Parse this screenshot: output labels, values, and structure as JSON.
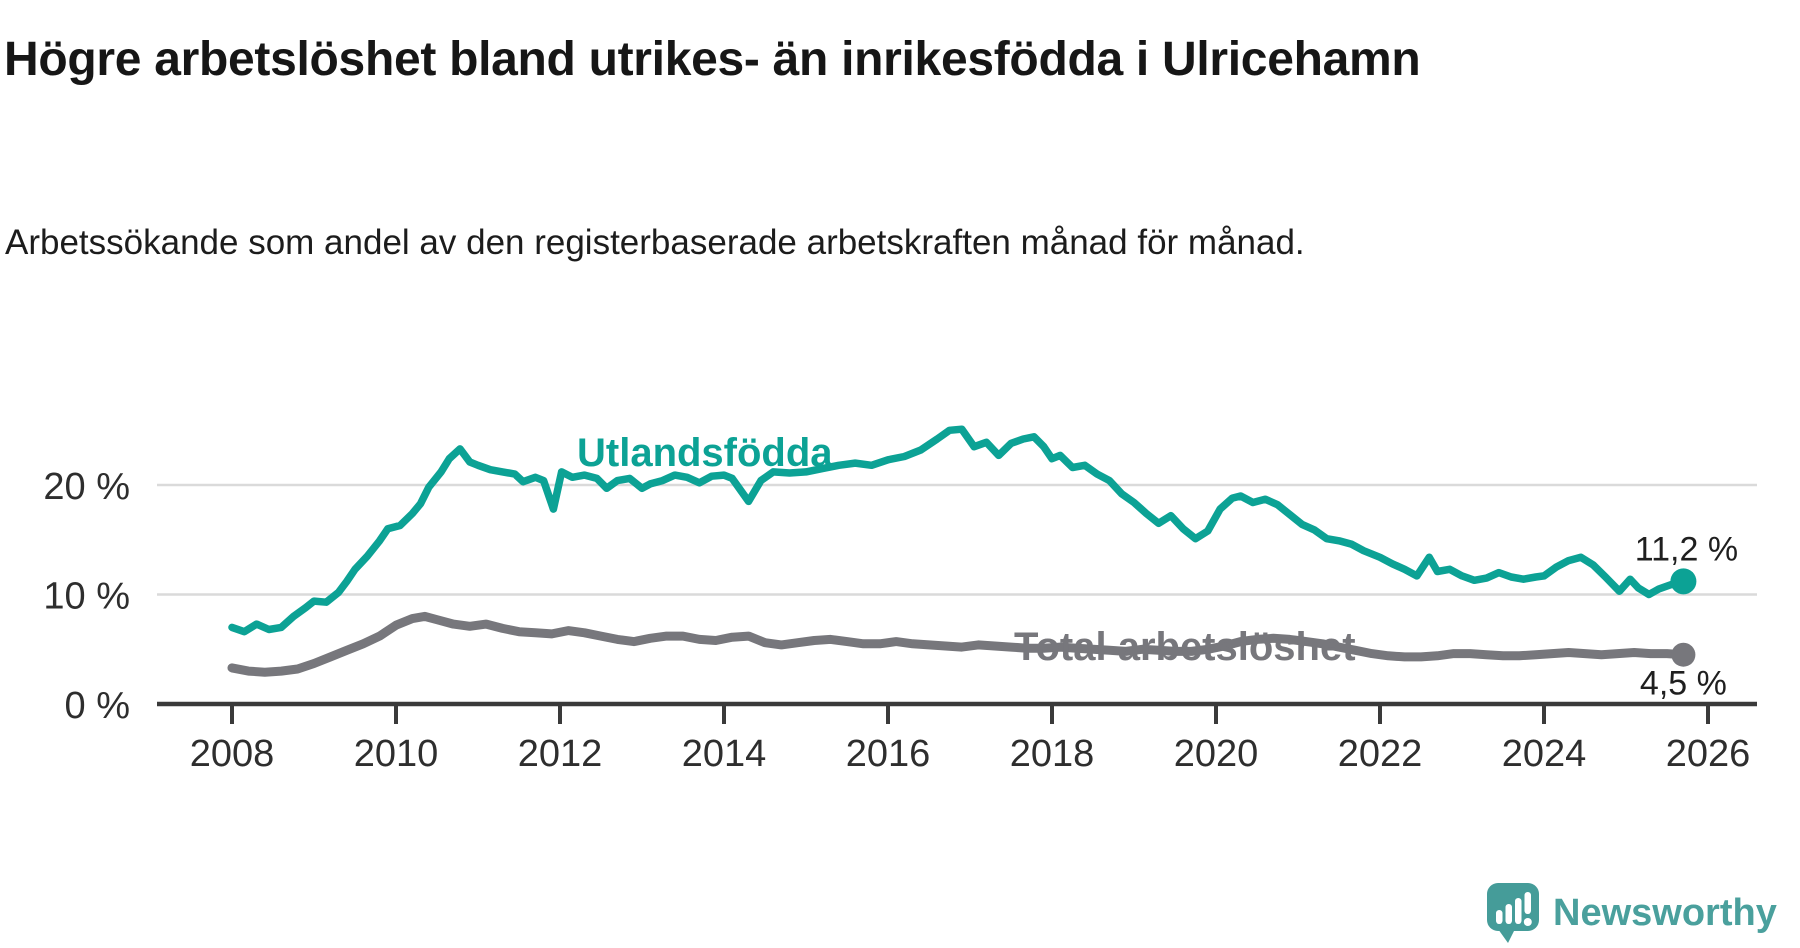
{
  "page": {
    "title": "Högre arbetslöshet bland utrikes- än inrikesfödda i Ulricehamn",
    "subtitle": "Arbetssökande som andel av den registerbaserade arbetskraften månad för månad."
  },
  "branding": {
    "logo_text": "Newsworthy",
    "logo_icon": "bar-chart-speech-bubble-icon",
    "logo_teal": "#4AA09D",
    "logo_icon_bg": "#459C99"
  },
  "chart_data": {
    "type": "line",
    "title": "Högre arbetslöshet bland utrikes- än inrikesfödda i Ulricehamn",
    "subtitle": "Arbetssökande som andel av den registerbaserade arbetskraften månad för månad.",
    "grid": "horizontal",
    "legend": "inline-labels",
    "x_axis": {
      "range": [
        2007.8,
        2026.4
      ],
      "ticks": [
        2008,
        2010,
        2012,
        2014,
        2016,
        2018,
        2020,
        2022,
        2024,
        2026
      ]
    },
    "y_axis": {
      "unit": "%",
      "range": [
        0,
        31
      ],
      "tick_values": [
        0,
        10,
        20
      ],
      "tick_labels": [
        "0 %",
        "10 %",
        "20 %"
      ]
    },
    "series": [
      {
        "name": "Utlandsfödda",
        "color": "#0CA295",
        "end_label": "11,2 %",
        "end_value": 11.2,
        "points": [
          [
            2008.0,
            7.0
          ],
          [
            2008.15,
            6.6
          ],
          [
            2008.3,
            7.3
          ],
          [
            2008.45,
            6.8
          ],
          [
            2008.6,
            7.0
          ],
          [
            2008.75,
            8.0
          ],
          [
            2008.9,
            8.8
          ],
          [
            2009.0,
            9.4
          ],
          [
            2009.15,
            9.3
          ],
          [
            2009.3,
            10.2
          ],
          [
            2009.4,
            11.2
          ],
          [
            2009.5,
            12.3
          ],
          [
            2009.65,
            13.5
          ],
          [
            2009.8,
            14.9
          ],
          [
            2009.9,
            16.0
          ],
          [
            2010.05,
            16.3
          ],
          [
            2010.2,
            17.4
          ],
          [
            2010.3,
            18.3
          ],
          [
            2010.4,
            19.8
          ],
          [
            2010.55,
            21.2
          ],
          [
            2010.65,
            22.4
          ],
          [
            2010.78,
            23.3
          ],
          [
            2010.9,
            22.1
          ],
          [
            2011.0,
            21.8
          ],
          [
            2011.15,
            21.4
          ],
          [
            2011.3,
            21.2
          ],
          [
            2011.45,
            21.0
          ],
          [
            2011.55,
            20.3
          ],
          [
            2011.7,
            20.7
          ],
          [
            2011.8,
            20.4
          ],
          [
            2011.92,
            17.8
          ],
          [
            2012.02,
            21.2
          ],
          [
            2012.15,
            20.7
          ],
          [
            2012.3,
            20.9
          ],
          [
            2012.45,
            20.6
          ],
          [
            2012.57,
            19.7
          ],
          [
            2012.7,
            20.4
          ],
          [
            2012.85,
            20.6
          ],
          [
            2013.0,
            19.7
          ],
          [
            2013.1,
            20.1
          ],
          [
            2013.25,
            20.4
          ],
          [
            2013.4,
            20.9
          ],
          [
            2013.55,
            20.7
          ],
          [
            2013.7,
            20.2
          ],
          [
            2013.85,
            20.8
          ],
          [
            2014.0,
            20.9
          ],
          [
            2014.1,
            20.6
          ],
          [
            2014.3,
            18.5
          ],
          [
            2014.45,
            20.4
          ],
          [
            2014.6,
            21.2
          ],
          [
            2014.8,
            21.1
          ],
          [
            2015.0,
            21.2
          ],
          [
            2015.2,
            21.5
          ],
          [
            2015.4,
            21.8
          ],
          [
            2015.6,
            22.0
          ],
          [
            2015.8,
            21.8
          ],
          [
            2016.0,
            22.3
          ],
          [
            2016.2,
            22.6
          ],
          [
            2016.4,
            23.2
          ],
          [
            2016.6,
            24.2
          ],
          [
            2016.75,
            25.0
          ],
          [
            2016.9,
            25.1
          ],
          [
            2017.05,
            23.5
          ],
          [
            2017.2,
            23.9
          ],
          [
            2017.35,
            22.7
          ],
          [
            2017.5,
            23.8
          ],
          [
            2017.65,
            24.2
          ],
          [
            2017.78,
            24.4
          ],
          [
            2017.9,
            23.5
          ],
          [
            2018.0,
            22.4
          ],
          [
            2018.1,
            22.7
          ],
          [
            2018.25,
            21.6
          ],
          [
            2018.4,
            21.8
          ],
          [
            2018.55,
            21.0
          ],
          [
            2018.7,
            20.4
          ],
          [
            2018.85,
            19.2
          ],
          [
            2019.0,
            18.4
          ],
          [
            2019.15,
            17.4
          ],
          [
            2019.3,
            16.5
          ],
          [
            2019.45,
            17.2
          ],
          [
            2019.6,
            16.0
          ],
          [
            2019.75,
            15.1
          ],
          [
            2019.9,
            15.8
          ],
          [
            2020.05,
            17.8
          ],
          [
            2020.2,
            18.8
          ],
          [
            2020.3,
            19.0
          ],
          [
            2020.45,
            18.4
          ],
          [
            2020.6,
            18.7
          ],
          [
            2020.75,
            18.2
          ],
          [
            2020.9,
            17.3
          ],
          [
            2021.05,
            16.4
          ],
          [
            2021.2,
            15.9
          ],
          [
            2021.35,
            15.1
          ],
          [
            2021.5,
            14.9
          ],
          [
            2021.65,
            14.6
          ],
          [
            2021.8,
            14.0
          ],
          [
            2022.0,
            13.4
          ],
          [
            2022.15,
            12.8
          ],
          [
            2022.3,
            12.3
          ],
          [
            2022.45,
            11.7
          ],
          [
            2022.6,
            13.4
          ],
          [
            2022.7,
            12.1
          ],
          [
            2022.85,
            12.3
          ],
          [
            2023.0,
            11.7
          ],
          [
            2023.15,
            11.3
          ],
          [
            2023.3,
            11.5
          ],
          [
            2023.45,
            12.0
          ],
          [
            2023.6,
            11.6
          ],
          [
            2023.75,
            11.4
          ],
          [
            2023.9,
            11.6
          ],
          [
            2024.0,
            11.7
          ],
          [
            2024.15,
            12.5
          ],
          [
            2024.3,
            13.1
          ],
          [
            2024.45,
            13.4
          ],
          [
            2024.6,
            12.7
          ],
          [
            2024.75,
            11.6
          ],
          [
            2024.92,
            10.3
          ],
          [
            2025.05,
            11.4
          ],
          [
            2025.15,
            10.6
          ],
          [
            2025.28,
            10.0
          ],
          [
            2025.4,
            10.5
          ],
          [
            2025.55,
            10.9
          ],
          [
            2025.7,
            11.2
          ]
        ]
      },
      {
        "name": "Total arbetslöshet",
        "color": "#77777C",
        "end_label": "4,5 %",
        "end_value": 4.5,
        "points": [
          [
            2008.0,
            3.3
          ],
          [
            2008.2,
            3.0
          ],
          [
            2008.4,
            2.9
          ],
          [
            2008.6,
            3.0
          ],
          [
            2008.8,
            3.2
          ],
          [
            2009.0,
            3.7
          ],
          [
            2009.2,
            4.3
          ],
          [
            2009.4,
            4.9
          ],
          [
            2009.6,
            5.5
          ],
          [
            2009.8,
            6.2
          ],
          [
            2010.0,
            7.2
          ],
          [
            2010.2,
            7.8
          ],
          [
            2010.35,
            8.0
          ],
          [
            2010.5,
            7.7
          ],
          [
            2010.7,
            7.3
          ],
          [
            2010.9,
            7.1
          ],
          [
            2011.1,
            7.3
          ],
          [
            2011.3,
            6.9
          ],
          [
            2011.5,
            6.6
          ],
          [
            2011.7,
            6.5
          ],
          [
            2011.9,
            6.4
          ],
          [
            2012.1,
            6.7
          ],
          [
            2012.3,
            6.5
          ],
          [
            2012.5,
            6.2
          ],
          [
            2012.7,
            5.9
          ],
          [
            2012.9,
            5.7
          ],
          [
            2013.1,
            6.0
          ],
          [
            2013.3,
            6.2
          ],
          [
            2013.5,
            6.2
          ],
          [
            2013.7,
            5.9
          ],
          [
            2013.9,
            5.8
          ],
          [
            2014.1,
            6.1
          ],
          [
            2014.3,
            6.2
          ],
          [
            2014.5,
            5.6
          ],
          [
            2014.7,
            5.4
          ],
          [
            2014.9,
            5.6
          ],
          [
            2015.1,
            5.8
          ],
          [
            2015.3,
            5.9
          ],
          [
            2015.5,
            5.7
          ],
          [
            2015.7,
            5.5
          ],
          [
            2015.9,
            5.5
          ],
          [
            2016.1,
            5.7
          ],
          [
            2016.3,
            5.5
          ],
          [
            2016.5,
            5.4
          ],
          [
            2016.7,
            5.3
          ],
          [
            2016.9,
            5.2
          ],
          [
            2017.1,
            5.4
          ],
          [
            2017.3,
            5.3
          ],
          [
            2017.5,
            5.2
          ],
          [
            2017.7,
            5.1
          ],
          [
            2017.9,
            5.1
          ],
          [
            2018.1,
            5.2
          ],
          [
            2018.3,
            5.1
          ],
          [
            2018.5,
            5.0
          ],
          [
            2018.7,
            4.9
          ],
          [
            2018.9,
            4.8
          ],
          [
            2019.1,
            5.0
          ],
          [
            2019.3,
            4.9
          ],
          [
            2019.5,
            4.8
          ],
          [
            2019.7,
            4.8
          ],
          [
            2019.9,
            5.0
          ],
          [
            2020.1,
            5.3
          ],
          [
            2020.3,
            5.7
          ],
          [
            2020.5,
            5.9
          ],
          [
            2020.7,
            6.0
          ],
          [
            2020.9,
            5.9
          ],
          [
            2021.1,
            5.7
          ],
          [
            2021.3,
            5.5
          ],
          [
            2021.5,
            5.2
          ],
          [
            2021.7,
            4.9
          ],
          [
            2021.9,
            4.6
          ],
          [
            2022.1,
            4.4
          ],
          [
            2022.3,
            4.3
          ],
          [
            2022.5,
            4.3
          ],
          [
            2022.7,
            4.4
          ],
          [
            2022.9,
            4.6
          ],
          [
            2023.1,
            4.6
          ],
          [
            2023.3,
            4.5
          ],
          [
            2023.5,
            4.4
          ],
          [
            2023.7,
            4.4
          ],
          [
            2023.9,
            4.5
          ],
          [
            2024.1,
            4.6
          ],
          [
            2024.3,
            4.7
          ],
          [
            2024.5,
            4.6
          ],
          [
            2024.7,
            4.5
          ],
          [
            2024.9,
            4.6
          ],
          [
            2025.1,
            4.7
          ],
          [
            2025.3,
            4.6
          ],
          [
            2025.5,
            4.6
          ],
          [
            2025.7,
            4.5
          ]
        ]
      }
    ]
  }
}
